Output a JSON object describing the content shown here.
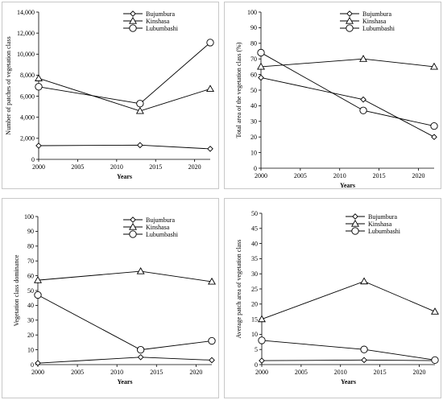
{
  "chart_data": [
    {
      "type": "line",
      "xlabel": "Years",
      "ylabel": "Number of patches of vegetation class",
      "xlim": [
        2000,
        2022
      ],
      "xticks": [
        "2000",
        "2005",
        "2010",
        "2015",
        "2020"
      ],
      "ylim": [
        0,
        14000
      ],
      "yticks": [
        "0",
        "2,000",
        "4,000",
        "6,000",
        "8,000",
        "10,000",
        "12,000",
        "14,000"
      ],
      "x": [
        2000,
        2013,
        2022
      ],
      "legend_position": "top-right",
      "series": [
        {
          "name": "Bujumbura",
          "marker": "diamond",
          "values": [
            1300,
            1350,
            1000
          ]
        },
        {
          "name": "Kinshasa",
          "marker": "triangle",
          "values": [
            7700,
            4600,
            6700
          ]
        },
        {
          "name": "Lubumbashi",
          "marker": "circle",
          "values": [
            6900,
            5300,
            11100
          ]
        }
      ]
    },
    {
      "type": "line",
      "xlabel": "Years",
      "ylabel": "Total area of the vegetation class (%)",
      "xlim": [
        2000,
        2022
      ],
      "xticks": [
        "2000",
        "2005",
        "2010",
        "2015",
        "2020"
      ],
      "ylim": [
        0,
        100
      ],
      "yticks": [
        "0",
        "10",
        "20",
        "30",
        "40",
        "50",
        "60",
        "70",
        "80",
        "90",
        "100"
      ],
      "x": [
        2000,
        2013,
        2022
      ],
      "legend_position": "top-right",
      "series": [
        {
          "name": "Bujumbura",
          "marker": "diamond",
          "values": [
            58,
            44,
            20
          ]
        },
        {
          "name": "Kinshasa",
          "marker": "triangle",
          "values": [
            65,
            70,
            65
          ]
        },
        {
          "name": "Lubumbashi",
          "marker": "circle",
          "values": [
            74,
            37,
            27
          ]
        }
      ]
    },
    {
      "type": "line",
      "xlabel": "Years",
      "ylabel": "Vegetation class dominance",
      "xlim": [
        2000,
        2022
      ],
      "xticks": [
        "2000",
        "2005",
        "2010",
        "2015",
        "2020"
      ],
      "ylim": [
        0,
        100
      ],
      "yticks": [
        "0",
        "10",
        "20",
        "30",
        "40",
        "50",
        "60",
        "70",
        "80",
        "90",
        "100"
      ],
      "x": [
        2000,
        2013,
        2022
      ],
      "legend_position": "top-right",
      "series": [
        {
          "name": "Bujumbura",
          "marker": "diamond",
          "values": [
            1,
            5,
            3
          ]
        },
        {
          "name": "Kinshasa",
          "marker": "triangle",
          "values": [
            57,
            63,
            56
          ]
        },
        {
          "name": "Lubumbashi",
          "marker": "circle",
          "values": [
            47,
            10,
            16
          ]
        }
      ]
    },
    {
      "type": "line",
      "xlabel": "Years",
      "ylabel": "Average patch area of vegetation class",
      "xlim": [
        2000,
        2022
      ],
      "xticks": [
        "2000",
        "2005",
        "2010",
        "2015",
        "2020"
      ],
      "ylim": [
        0,
        50
      ],
      "yticks": [
        "0",
        "5",
        "10",
        "15",
        "20",
        "25",
        "30",
        "35",
        "40",
        "45",
        "50"
      ],
      "x": [
        2000,
        2013,
        2022
      ],
      "legend_position": "top-right",
      "series": [
        {
          "name": "Bujumbura",
          "marker": "diamond",
          "values": [
            1.3,
            1.5,
            1.3
          ]
        },
        {
          "name": "Kinshasa",
          "marker": "triangle",
          "values": [
            15,
            27.5,
            17.5
          ]
        },
        {
          "name": "Lubumbashi",
          "marker": "circle",
          "values": [
            8,
            5,
            1.5
          ]
        }
      ]
    }
  ]
}
